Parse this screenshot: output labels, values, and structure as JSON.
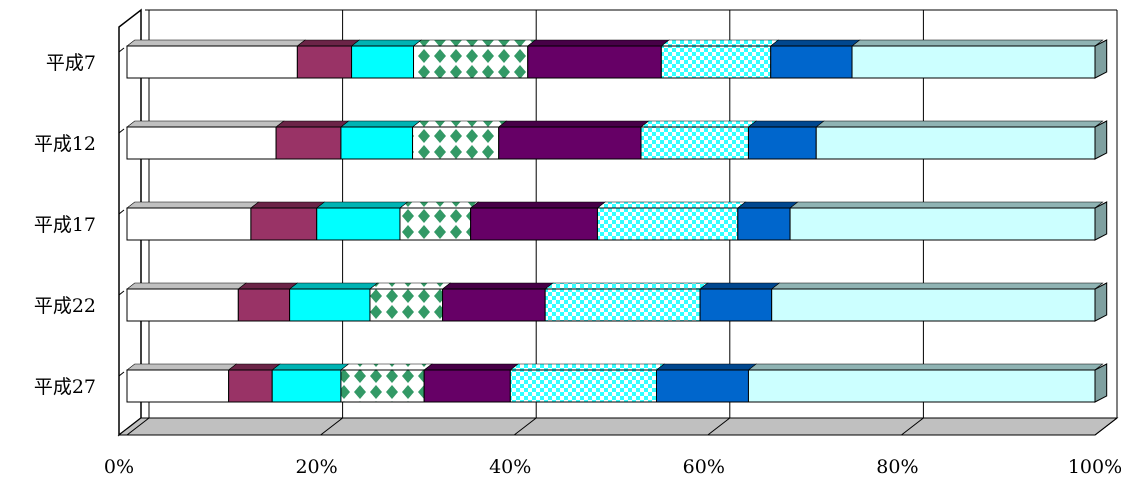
{
  "chart_data": {
    "type": "bar",
    "stacked": true,
    "orientation": "horizontal",
    "percent_stacked": true,
    "three_d": true,
    "categories": [
      "平成7",
      "平成12",
      "平成17",
      "平成22",
      "平成27"
    ],
    "x_tick_labels": [
      "0%",
      "20%",
      "40%",
      "60%",
      "80%",
      "100%"
    ],
    "xlim": [
      0,
      100
    ],
    "grid": true,
    "legend": "none",
    "series": [
      {
        "values": [
          17.6,
          15.4,
          12.8,
          11.5,
          10.5
        ],
        "color": "#ffffff",
        "pattern": "solid"
      },
      {
        "values": [
          5.6,
          6.7,
          6.8,
          5.3,
          4.5
        ],
        "color": "#993366",
        "pattern": "solid"
      },
      {
        "values": [
          6.4,
          7.4,
          8.6,
          8.3,
          7.1
        ],
        "color": "#00ffff",
        "pattern": "solid"
      },
      {
        "values": [
          11.8,
          8.9,
          7.3,
          7.5,
          8.6
        ],
        "color": "#339966",
        "pattern": "diamonds"
      },
      {
        "values": [
          13.8,
          14.7,
          13.1,
          10.6,
          8.9
        ],
        "color": "#660066",
        "pattern": "solid"
      },
      {
        "values": [
          11.3,
          11.1,
          14.5,
          16.0,
          15.1
        ],
        "color": "#33ffff",
        "pattern": "checker"
      },
      {
        "values": [
          8.4,
          7.0,
          5.4,
          7.4,
          9.5
        ],
        "color": "#0066cc",
        "pattern": "solid"
      },
      {
        "values": [
          25.1,
          28.8,
          31.5,
          33.4,
          35.8
        ],
        "color": "#ccffff",
        "pattern": "solid"
      }
    ]
  }
}
